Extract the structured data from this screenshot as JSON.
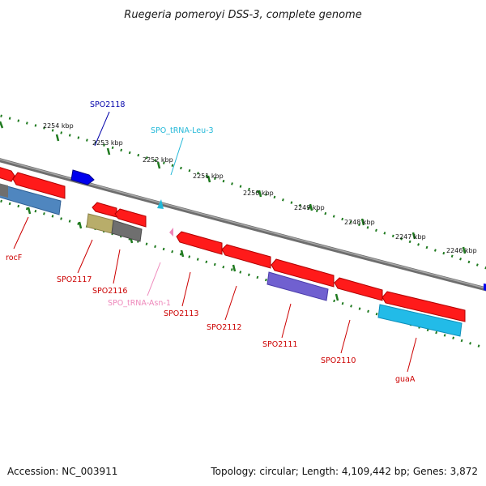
{
  "title": "Ruegeria pomeroyi DSS-3, complete genome",
  "footer": {
    "accession": "Accession: NC_003911",
    "topology": "Topology: circular; Length: 4,109,442 bp; Genes: 3,872"
  },
  "scale_labels": [
    "2254 kbp",
    "2253 kbp",
    "2252 kbp",
    "2251 kbp",
    "2250 kbp",
    "2249 kbp",
    "2248 kbp",
    "2247 kbp",
    "2246 kbp"
  ],
  "feature_labels": [
    {
      "text": "SPO2118",
      "color": "#0000aa"
    },
    {
      "text": "SPO_tRNA-Leu-3",
      "color": "#22b8d8"
    },
    {
      "text": "rocF",
      "color": "#cc0000"
    },
    {
      "text": "SPO2117",
      "color": "#cc0000"
    },
    {
      "text": "SPO2116",
      "color": "#cc0000"
    },
    {
      "text": "SPO_tRNA-Asn-1",
      "color": "#ee88bb"
    },
    {
      "text": "SPO2113",
      "color": "#cc0000"
    },
    {
      "text": "SPO2112",
      "color": "#cc0000"
    },
    {
      "text": "SPO2111",
      "color": "#cc0000"
    },
    {
      "text": "SPO2110",
      "color": "#cc0000"
    },
    {
      "text": "guaA",
      "color": "#cc0000"
    }
  ],
  "colors": {
    "backbone": "#7a7a7a",
    "tick_dot": "#1f7a1f",
    "gene": "#ff1a1a",
    "forward_gene": "#0000ee",
    "trna_leu": "#22b8d8",
    "trna_asn": "#ee88bb",
    "cog_steelblue": "#4f86bf",
    "cog_khaki": "#b8ad6a",
    "cog_gray": "#6f6f6f",
    "cog_purple": "#7060d0",
    "cog_cyan": "#22bbe8"
  }
}
